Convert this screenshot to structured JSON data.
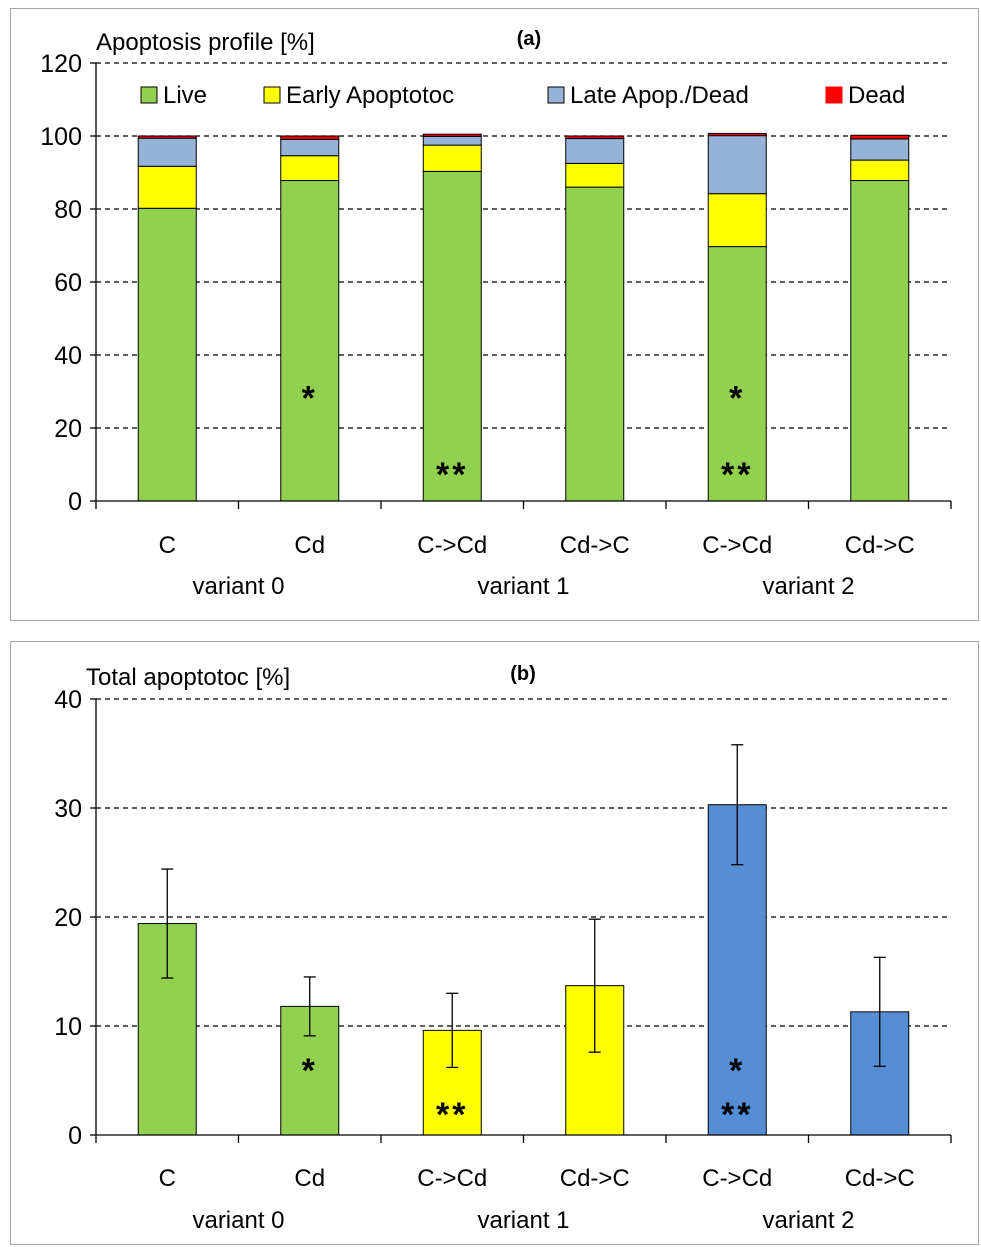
{
  "chart_data": [
    {
      "panel_label": "(a)",
      "type": "bar",
      "stacked": true,
      "ylabel": "Apoptosis profile [%]",
      "ylim": [
        0,
        120
      ],
      "yticks": [
        "0",
        "20",
        "40",
        "60",
        "80",
        "100",
        "120"
      ],
      "grid": "horizontal dashed",
      "legend_position": "top",
      "categories": [
        "C",
        "Cd",
        "C->Cd",
        "Cd->C",
        "C->Cd",
        "Cd->C"
      ],
      "groups": [
        {
          "label": "variant 0",
          "size": 2
        },
        {
          "label": "variant 1",
          "size": 2
        },
        {
          "label": "variant 2",
          "size": 2
        }
      ],
      "series": [
        {
          "name": "Live",
          "color": "#92d050",
          "values": [
            80.2,
            87.8,
            90.3,
            86.0,
            69.7,
            87.8
          ]
        },
        {
          "name": "Early Apoptotoc",
          "color": "#ffff00",
          "values": [
            11.5,
            6.8,
            7.2,
            6.5,
            14.5,
            5.6
          ]
        },
        {
          "name": "Late Apop./Dead",
          "color": "#95b3d7",
          "values": [
            7.7,
            4.5,
            2.4,
            6.8,
            15.9,
            5.8
          ]
        },
        {
          "name": "Dead",
          "color": "#ff0000",
          "values": [
            0.6,
            0.9,
            0.6,
            0.7,
            0.6,
            1.0
          ]
        }
      ],
      "annotations": [
        {
          "category_index": 1,
          "text": "*",
          "y": 30
        },
        {
          "category_index": 2,
          "text": "**",
          "y": 9
        },
        {
          "category_index": 4,
          "text": "*",
          "y": 30
        },
        {
          "category_index": 4,
          "text": "**",
          "y": 9
        }
      ]
    },
    {
      "panel_label": "(b)",
      "type": "bar",
      "ylabel": "Total apoptotoc [%]",
      "ylim": [
        0,
        40
      ],
      "yticks": [
        "0",
        "10",
        "20",
        "30",
        "40"
      ],
      "grid": "horizontal dashed",
      "categories": [
        "C",
        "Cd",
        "C->Cd",
        "Cd->C",
        "C->Cd",
        "Cd->C"
      ],
      "groups": [
        {
          "label": "variant 0",
          "size": 2
        },
        {
          "label": "variant 1",
          "size": 2
        },
        {
          "label": "variant 2",
          "size": 2
        }
      ],
      "values": [
        19.4,
        11.8,
        9.6,
        13.7,
        30.3,
        11.3
      ],
      "errors": [
        5.0,
        2.7,
        3.4,
        6.1,
        5.5,
        5.0
      ],
      "bar_colors": [
        "#92d050",
        "#92d050",
        "#ffff00",
        "#ffff00",
        "#558ed5",
        "#558ed5"
      ],
      "annotations": [
        {
          "category_index": 1,
          "text": "*",
          "y": 6.5
        },
        {
          "category_index": 2,
          "text": "**",
          "y": 2.5
        },
        {
          "category_index": 4,
          "text": "*",
          "y": 6.5
        },
        {
          "category_index": 4,
          "text": "**",
          "y": 2.5
        }
      ]
    }
  ]
}
